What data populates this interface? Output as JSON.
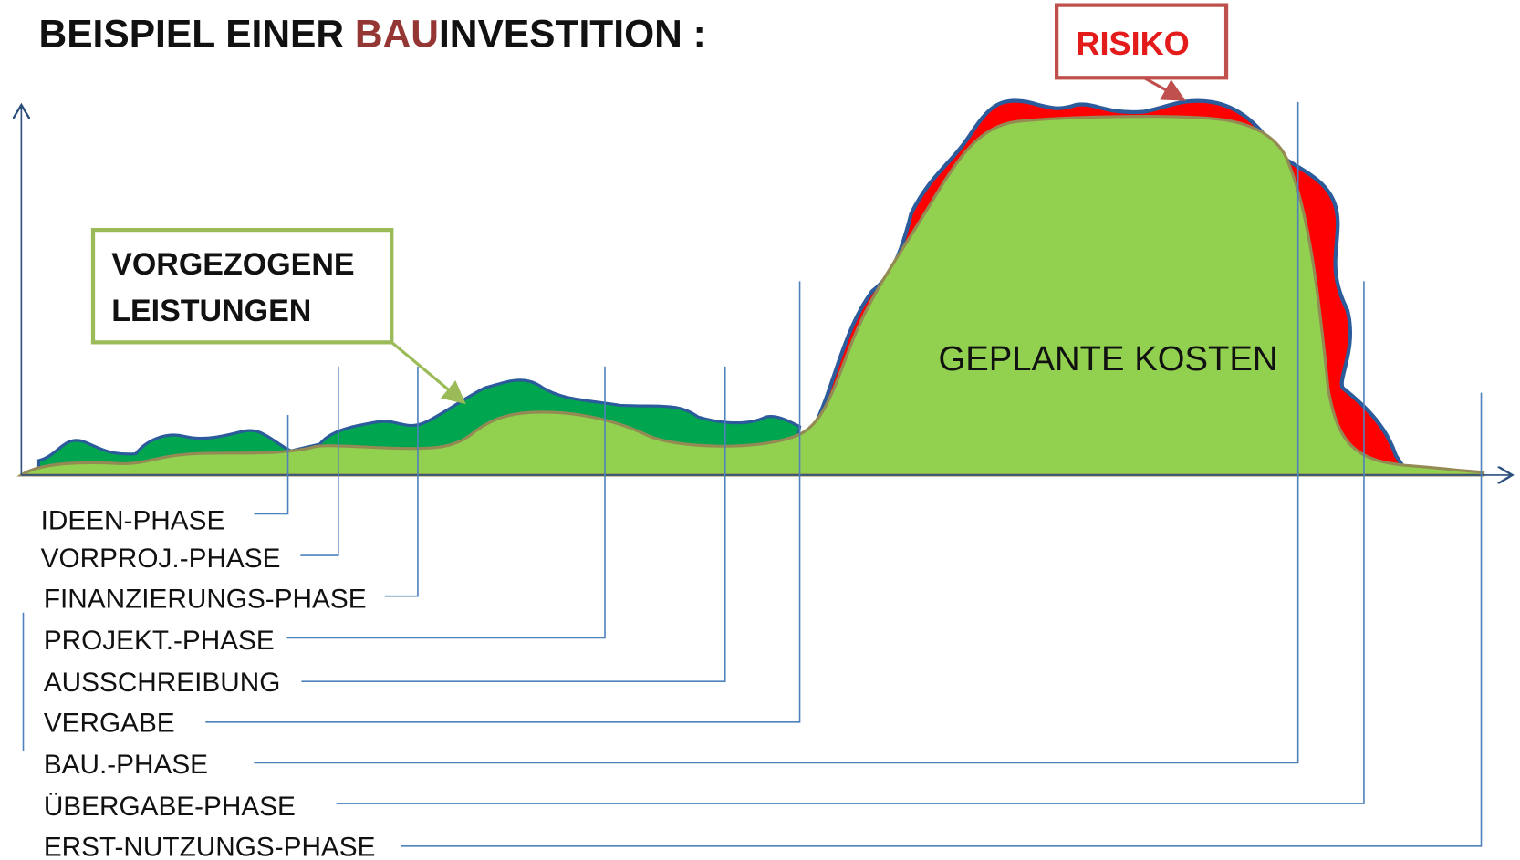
{
  "title": {
    "part1": "BEISPIEL EINER ",
    "part2": "BAU",
    "part3": "INVESTITION :"
  },
  "callouts": {
    "risk": "RISIKO",
    "advance_line1": "VORGEZOGENE",
    "advance_line2": "LEISTUNGEN"
  },
  "area_label": "GEPLANTE KOSTEN",
  "phases": [
    "IDEEN-PHASE",
    "VORPROJ.-PHASE",
    "FINANZIERUNGS-PHASE",
    "PROJEKT.-PHASE",
    "AUSSCHREIBUNG",
    "VERGABE",
    "BAU.-PHASE",
    "ÜBERGABE-PHASE",
    "ERST-NUTZUNGS-PHASE"
  ]
}
